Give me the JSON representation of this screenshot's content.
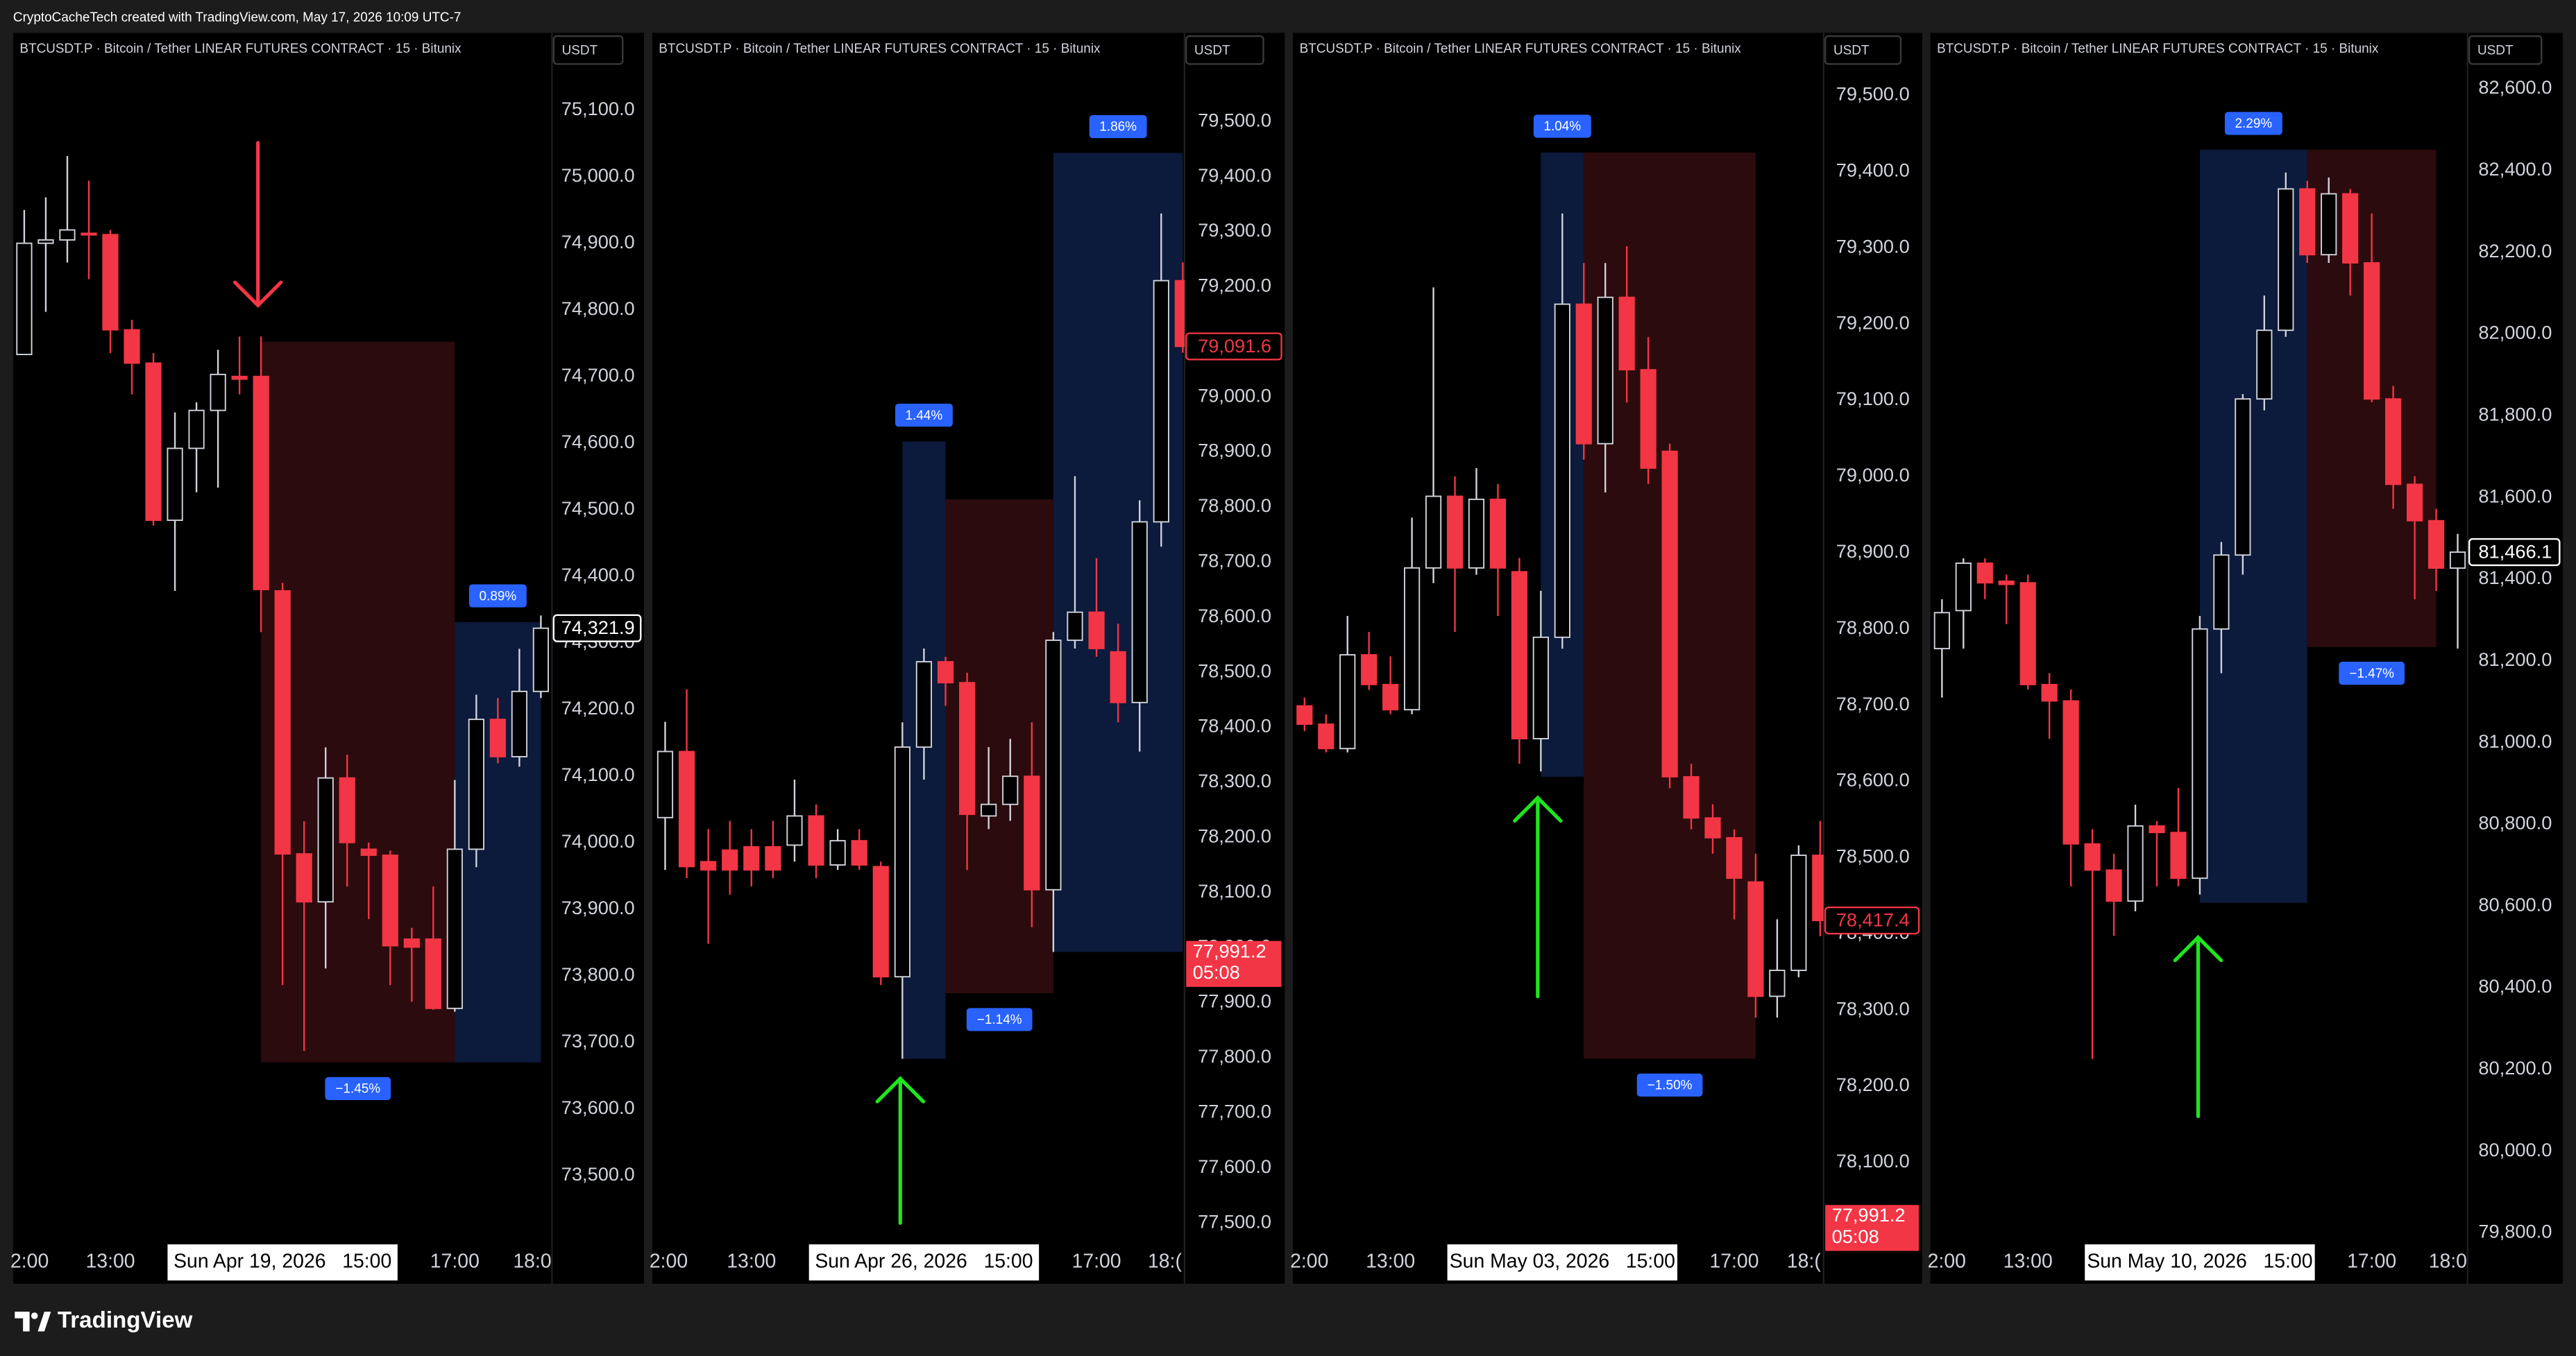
{
  "header": "CryptoCacheTech created with TradingView.com, May 17, 2026 10:09 UTC-7",
  "footer": "TradingView",
  "chart_data": [
    {
      "type": "candlestick",
      "title": "BTCUSDT.P · Bitcoin / Tether LINEAR FUTURES CONTRACT · 15 · Bitunix",
      "currency": "USDT",
      "up_color": "#d1d4dc",
      "down_color": "#f23645",
      "grid": false,
      "x": [
        12,
        12.25,
        12.5,
        12.75,
        13,
        13.25,
        13.5,
        13.75,
        14,
        14.25,
        14.5,
        14.75,
        15,
        15.25,
        15.5,
        15.75,
        16,
        16.25,
        16.5,
        16.75,
        17,
        17.25,
        17.5,
        17.75,
        18
      ],
      "open": [
        74733,
        74900,
        74905,
        74915,
        74913,
        74770,
        74720,
        74484,
        74592,
        74649,
        74700,
        74700,
        74378,
        73983,
        73911,
        74097,
        73990,
        73981,
        73855,
        73855,
        73751,
        73990,
        74185,
        74129,
        74227
      ],
      "high": [
        74950,
        74969,
        75031,
        74994,
        74920,
        74785,
        74735,
        74646,
        74661,
        74740,
        74760,
        74760,
        74390,
        74032,
        74143,
        74132,
        74000,
        73988,
        73872,
        73934,
        74094,
        74222,
        74217,
        74291,
        74341
      ],
      "low": [
        74733,
        74797,
        74871,
        74846,
        74735,
        74673,
        74476,
        74378,
        74526,
        74533,
        74673,
        74316,
        73786,
        73687,
        73811,
        73934,
        73885,
        73786,
        73761,
        73749,
        73746,
        73963,
        74119,
        74114,
        74217
      ],
      "close": [
        74900,
        74905,
        74920,
        74913,
        74770,
        74720,
        74484,
        74592,
        74649,
        74703,
        74696,
        74380,
        73983,
        73911,
        74097,
        74000,
        73981,
        73845,
        73843,
        73751,
        73990,
        74185,
        74129,
        74227,
        74321.9
      ],
      "xlim": [
        11.871,
        18.129
      ],
      "xticks": [
        {
          "value": 12,
          "label": "2:00"
        },
        {
          "value": 13,
          "label": "13:00"
        },
        {
          "value": 17,
          "label": "17:00"
        },
        {
          "value": 18,
          "label": "18:0"
        }
      ],
      "crosshair": {
        "value": 15,
        "label": "Sun Apr 19, 2026   15:00"
      },
      "ylim": [
        73404,
        75216
      ],
      "yticks": [
        {
          "value": 75100,
          "label": "75,100.0"
        },
        {
          "value": 75000,
          "label": "75,000.0"
        },
        {
          "value": 74900,
          "label": "74,900.0"
        },
        {
          "value": 74800,
          "label": "74,800.0"
        },
        {
          "value": 74700,
          "label": "74,700.0"
        },
        {
          "value": 74600,
          "label": "74,600.0"
        },
        {
          "value": 74500,
          "label": "74,500.0"
        },
        {
          "value": 74400,
          "label": "74,400.0"
        },
        {
          "value": 74300,
          "label": "74,300.0"
        },
        {
          "value": 74200,
          "label": "74,200.0"
        },
        {
          "value": 74100,
          "label": "74,100.0"
        },
        {
          "value": 74000,
          "label": "74,000.0"
        },
        {
          "value": 73900,
          "label": "73,900.0"
        },
        {
          "value": 73800,
          "label": "73,800.0"
        },
        {
          "value": 73700,
          "label": "73,700.0"
        },
        {
          "value": 73600,
          "label": "73,600.0"
        },
        {
          "value": 73500,
          "label": "73,500.0"
        }
      ],
      "zones": [
        {
          "x": [
            14.75,
            17
          ],
          "top": 74752,
          "bottom": 73670,
          "color": "#2b0b0d",
          "label": "−1.45%"
        },
        {
          "x": [
            17,
            18
          ],
          "top": 74331,
          "bottom": 73670,
          "color": "#0c1a3b",
          "label": "0.89%"
        }
      ],
      "last_price": {
        "value": 74321.9,
        "label": "74,321.9",
        "color": "#ffffff"
      }
    },
    {
      "type": "candlestick",
      "title": "BTCUSDT.P · Bitcoin / Tether LINEAR FUTURES CONTRACT · 15 · Bitunix",
      "currency": "USDT",
      "up_color": "#d1d4dc",
      "down_color": "#f23645",
      "grid": false,
      "x": [
        12,
        12.25,
        12.5,
        12.75,
        13,
        13.25,
        13.5,
        13.75,
        14,
        14.25,
        14.5,
        14.75,
        15,
        15.25,
        15.5,
        15.75,
        16,
        16.25,
        16.5,
        16.75,
        17,
        17.25,
        17.5,
        17.75,
        18
      ],
      "open": [
        78236,
        78356,
        78156,
        78177,
        78183,
        78183,
        78186,
        78239,
        78150,
        78194,
        78147,
        77947,
        78364,
        78519,
        78481,
        78239,
        78260,
        78311,
        78105,
        78558,
        78609,
        78537,
        78445,
        78773,
        79211
      ],
      "high": [
        78410,
        78469,
        78215,
        78230,
        78215,
        78230,
        78305,
        78260,
        78215,
        78215,
        78156,
        78409,
        78543,
        78528,
        78499,
        78364,
        78379,
        78409,
        78573,
        78856,
        78707,
        78588,
        78812,
        79333,
        79244
      ],
      "low": [
        78141,
        78126,
        78007,
        78096,
        78111,
        78126,
        78156,
        78126,
        78141,
        78141,
        77932,
        77798,
        78305,
        78439,
        78141,
        78215,
        78230,
        78037,
        77992,
        78543,
        78528,
        78409,
        78356,
        78728,
        79080
      ],
      "close": [
        78356,
        78147,
        78141,
        78141,
        78141,
        78141,
        78239,
        78150,
        78194,
        78150,
        77947,
        78364,
        78519,
        78481,
        78242,
        78260,
        78311,
        78105,
        78558,
        78609,
        78543,
        78445,
        78773,
        79211,
        79091.6
      ],
      "xlim": [
        11.85,
        18.02
      ],
      "xticks": [
        {
          "value": 12,
          "label": "2:00"
        },
        {
          "value": 13,
          "label": "13:00"
        },
        {
          "value": 17,
          "label": "17:00"
        },
        {
          "value": 18,
          "label": "18:("
        }
      ],
      "crosshair": {
        "value": 15,
        "label": "Sun Apr 26, 2026   15:00"
      },
      "ylim": [
        77470,
        79661
      ],
      "yticks": [
        {
          "value": 79500,
          "label": "79,500.0"
        },
        {
          "value": 79400,
          "label": "79,400.0"
        },
        {
          "value": 79300,
          "label": "79,300.0"
        },
        {
          "value": 79200,
          "label": "79,200.0"
        },
        {
          "value": 79100,
          "label": "79,100.0"
        },
        {
          "value": 79000,
          "label": "79,000.0"
        },
        {
          "value": 78900,
          "label": "78,900.0"
        },
        {
          "value": 78800,
          "label": "78,800.0"
        },
        {
          "value": 78700,
          "label": "78,700.0"
        },
        {
          "value": 78600,
          "label": "78,600.0"
        },
        {
          "value": 78500,
          "label": "78,500.0"
        },
        {
          "value": 78400,
          "label": "78,400.0"
        },
        {
          "value": 78300,
          "label": "78,300.0"
        },
        {
          "value": 78200,
          "label": "78,200.0"
        },
        {
          "value": 78100,
          "label": "78,100.0"
        },
        {
          "value": 78000,
          "label": "78,000.0"
        },
        {
          "value": 77900,
          "label": "77,900.0"
        },
        {
          "value": 77800,
          "label": "77,800.0"
        },
        {
          "value": 77700,
          "label": "77,700.0"
        },
        {
          "value": 77600,
          "label": "77,600.0"
        },
        {
          "value": 77500,
          "label": "77,500.0"
        }
      ],
      "zones": [
        {
          "x": [
            14.75,
            15.25
          ],
          "top": 78919,
          "bottom": 77798,
          "color": "#0c1a3b",
          "label": "1.44%"
        },
        {
          "x": [
            15.25,
            16.5
          ],
          "top": 78814,
          "bottom": 77917,
          "color": "#2b0b0d",
          "label": "−1.14%"
        },
        {
          "x": [
            16.5,
            18
          ],
          "top": 79443,
          "bottom": 77992,
          "color": "#0c1a3b",
          "label": "1.86%"
        }
      ],
      "last_price": {
        "value": 79091.6,
        "label": "79,091.6",
        "color": "#f23645"
      },
      "countdown": {
        "value": 77991.2,
        "label": "77,991.2",
        "timer": "05:08"
      }
    },
    {
      "type": "candlestick",
      "title": "BTCUSDT.P · Bitcoin / Tether LINEAR FUTURES CONTRACT · 15 · Bitunix",
      "currency": "USDT",
      "up_color": "#d1d4dc",
      "down_color": "#f23645",
      "grid": false,
      "x": [
        12,
        12.25,
        12.5,
        12.75,
        13,
        13.25,
        13.5,
        13.75,
        14,
        14.25,
        14.5,
        14.75,
        15,
        15.25,
        15.5,
        15.75,
        16,
        16.25,
        16.5,
        16.75,
        17,
        17.25,
        17.5,
        17.75,
        18
      ],
      "open": [
        78699,
        78675,
        78643,
        78766,
        78727,
        78694,
        78880,
        78974,
        78880,
        78970,
        78875,
        78656,
        78789,
        79226,
        79043,
        79235,
        79140,
        79033,
        78606,
        78552,
        78526,
        78468,
        78318,
        78352,
        78503
      ],
      "high": [
        78710,
        78688,
        78817,
        78796,
        78764,
        78946,
        79248,
        79000,
        79011,
        78990,
        78893,
        78850,
        79345,
        79280,
        79280,
        79302,
        79183,
        79043,
        78623,
        78570,
        78537,
        78505,
        78419,
        78516,
        78548
      ],
      "low": [
        78666,
        78638,
        78638,
        78720,
        78688,
        78688,
        78860,
        78796,
        78871,
        78817,
        78623,
        78613,
        78774,
        79022,
        78979,
        79097,
        78990,
        78591,
        78537,
        78505,
        78419,
        78290,
        78290,
        78343,
        78397
      ],
      "close": [
        78675,
        78643,
        78766,
        78727,
        78694,
        78880,
        78974,
        78880,
        78970,
        78880,
        78656,
        78789,
        79226,
        79043,
        79235,
        79140,
        79011,
        78606,
        78552,
        78526,
        78473,
        78318,
        78352,
        78503,
        78417.4
      ],
      "xlim": [
        11.865,
        18.04
      ],
      "xticks": [
        {
          "value": 12,
          "label": "2:00"
        },
        {
          "value": 13,
          "label": "13:00"
        },
        {
          "value": 17,
          "label": "17:00"
        },
        {
          "value": 18,
          "label": "18:("
        }
      ],
      "crosshair": {
        "value": 15,
        "label": "Sun May 03, 2026   15:00"
      },
      "ylim": [
        77999,
        79582
      ],
      "yticks": [
        {
          "value": 79500,
          "label": "79,500.0"
        },
        {
          "value": 79400,
          "label": "79,400.0"
        },
        {
          "value": 79300,
          "label": "79,300.0"
        },
        {
          "value": 79200,
          "label": "79,200.0"
        },
        {
          "value": 79100,
          "label": "79,100.0"
        },
        {
          "value": 79000,
          "label": "79,000.0"
        },
        {
          "value": 78900,
          "label": "78,900.0"
        },
        {
          "value": 78800,
          "label": "78,800.0"
        },
        {
          "value": 78700,
          "label": "78,700.0"
        },
        {
          "value": 78600,
          "label": "78,600.0"
        },
        {
          "value": 78500,
          "label": "78,500.0"
        },
        {
          "value": 78400,
          "label": "78,400.0"
        },
        {
          "value": 78300,
          "label": "78,300.0"
        },
        {
          "value": 78200,
          "label": "78,200.0"
        },
        {
          "value": 78100,
          "label": "78,100.0"
        }
      ],
      "zones": [
        {
          "x": [
            14.75,
            15.25
          ],
          "top": 79425,
          "bottom": 78606,
          "color": "#0c1a3b",
          "label": "1.04%"
        },
        {
          "x": [
            15.25,
            17.25
          ],
          "top": 79425,
          "bottom": 78236,
          "color": "#2b0b0d",
          "label": "−1.50%"
        }
      ],
      "last_price": {
        "value": 78417.4,
        "label": "78,417.4",
        "color": "#f23645"
      },
      "countdown": {
        "value": 77991.2,
        "label": "77,991.2",
        "timer": "05:08"
      }
    },
    {
      "type": "candlestick",
      "title": "BTCUSDT.P · Bitcoin / Tether LINEAR FUTURES CONTRACT · 15 · Bitunix",
      "currency": "USDT",
      "up_color": "#d1d4dc",
      "down_color": "#f23645",
      "grid": false,
      "x": [
        12,
        12.25,
        12.5,
        12.75,
        13,
        13.25,
        13.5,
        13.75,
        14,
        14.25,
        14.5,
        14.75,
        15,
        15.25,
        15.5,
        15.75,
        16,
        16.25,
        16.5,
        16.75,
        17,
        17.25,
        17.5,
        17.75,
        18
      ],
      "open": [
        81230,
        81323,
        81439,
        81395,
        81391,
        81142,
        81102,
        80752,
        80688,
        80612,
        80796,
        80780,
        80668,
        81278,
        81459,
        81841,
        82009,
        82355,
        82194,
        82343,
        82174,
        81841,
        81632,
        81543,
        81427
      ],
      "high": [
        81351,
        81451,
        81451,
        81411,
        81411,
        81170,
        81130,
        80788,
        80728,
        80848,
        80808,
        80889,
        81310,
        81491,
        81853,
        82094,
        82395,
        82375,
        82383,
        82355,
        82295,
        81873,
        81652,
        81572,
        81511
      ],
      "low": [
        81110,
        81230,
        81351,
        81290,
        81130,
        81009,
        80648,
        80226,
        80527,
        80587,
        80648,
        80648,
        80628,
        81170,
        81411,
        81813,
        81993,
        82174,
        82174,
        82094,
        81833,
        81572,
        81351,
        81371,
        81230
      ],
      "close": [
        81318,
        81439,
        81391,
        81387,
        81142,
        81102,
        80752,
        80688,
        80612,
        80796,
        80780,
        80668,
        81278,
        81459,
        81841,
        82009,
        82355,
        82194,
        82343,
        82174,
        81841,
        81632,
        81543,
        81427,
        81466.1
      ],
      "xlim": [
        11.865,
        18.115
      ],
      "xticks": [
        {
          "value": 12,
          "label": "2:00"
        },
        {
          "value": 13,
          "label": "13:00"
        },
        {
          "value": 17,
          "label": "17:00"
        },
        {
          "value": 18,
          "label": "18:0"
        }
      ],
      "crosshair": {
        "value": 15,
        "label": "Sun May 10, 2026   15:00"
      },
      "ylim": [
        79784,
        82737
      ],
      "yticks": [
        {
          "value": 82600,
          "label": "82,600.0"
        },
        {
          "value": 82400,
          "label": "82,400.0"
        },
        {
          "value": 82200,
          "label": "82,200.0"
        },
        {
          "value": 82000,
          "label": "82,000.0"
        },
        {
          "value": 81800,
          "label": "81,800.0"
        },
        {
          "value": 81600,
          "label": "81,600.0"
        },
        {
          "value": 81400,
          "label": "81,400.0"
        },
        {
          "value": 81200,
          "label": "81,200.0"
        },
        {
          "value": 81000,
          "label": "81,000.0"
        },
        {
          "value": 80800,
          "label": "80,800.0"
        },
        {
          "value": 80600,
          "label": "80,600.0"
        },
        {
          "value": 80400,
          "label": "80,400.0"
        },
        {
          "value": 80200,
          "label": "80,200.0"
        },
        {
          "value": 80000,
          "label": "80,000.0"
        },
        {
          "value": 79800,
          "label": "79,800.0"
        }
      ],
      "zones": [
        {
          "x": [
            15,
            16.25
          ],
          "top": 82451,
          "bottom": 80608,
          "color": "#0c1a3b",
          "label": "2.29%"
        },
        {
          "x": [
            16.25,
            17.75
          ],
          "top": 82451,
          "bottom": 81234,
          "color": "#2b0b0d",
          "label": "−1.47%"
        }
      ],
      "last_price": {
        "value": 81466.1,
        "label": "81,466.1",
        "color": "#ffffff"
      }
    }
  ]
}
